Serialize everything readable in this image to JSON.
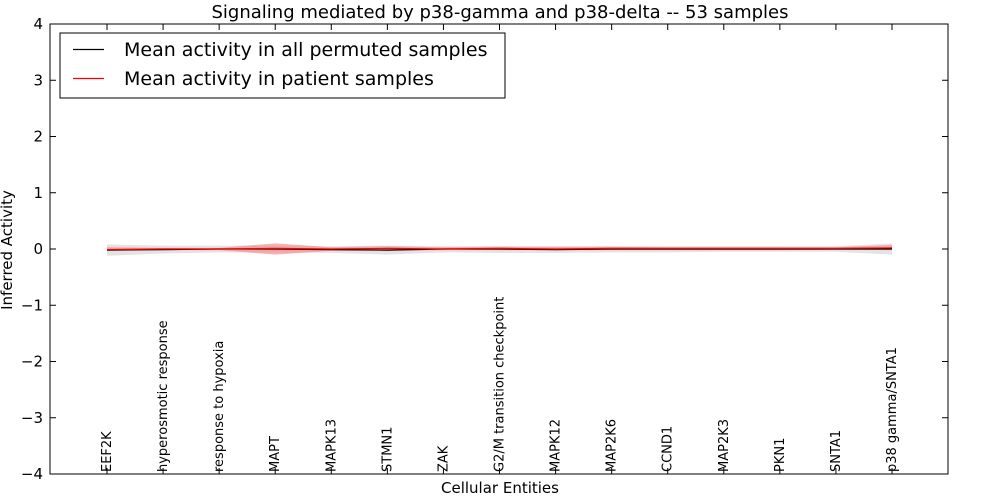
{
  "chart_data": {
    "type": "line",
    "title": "Signaling mediated by p38-gamma and p38-delta -- 53 samples",
    "xlabel": "Cellular Entities",
    "ylabel": "Inferred Activity",
    "ylim": [
      -4,
      4
    ],
    "yticks": [
      4,
      3,
      2,
      1,
      0,
      -1,
      -2,
      -3,
      -4
    ],
    "ytick_labels": [
      "4",
      "3",
      "2",
      "1",
      "0",
      "−1",
      "−2",
      "−3",
      "−4"
    ],
    "grid": false,
    "legend_position": "top-left",
    "categories": [
      "EEF2K",
      "hyperosmotic response",
      "response to hypoxia",
      "MAPT",
      "MAPK13",
      "STMN1",
      "ZAK",
      "G2/M transition checkpoint",
      "MAPK12",
      "MAP2K6",
      "CCND1",
      "MAP2K3",
      "PKN1",
      "SNTA1",
      "p38 gamma/SNTA1"
    ],
    "series": [
      {
        "name": "Mean activity in all permuted samples",
        "color": "#000000",
        "values": [
          -0.02,
          -0.01,
          0.0,
          0.0,
          -0.01,
          -0.02,
          0.0,
          0.0,
          -0.01,
          0.0,
          0.0,
          0.0,
          0.0,
          0.0,
          0.0
        ],
        "band_lower": [
          -0.12,
          -0.08,
          -0.06,
          -0.06,
          -0.07,
          -0.1,
          -0.06,
          -0.07,
          -0.07,
          -0.06,
          -0.06,
          -0.05,
          -0.05,
          -0.05,
          -0.1
        ],
        "band_upper": [
          0.08,
          0.06,
          0.06,
          0.06,
          0.05,
          0.06,
          0.05,
          0.05,
          0.05,
          0.05,
          0.05,
          0.05,
          0.05,
          0.05,
          0.1
        ],
        "band_color": "#cccccc"
      },
      {
        "name": "Mean activity in patient samples",
        "color": "#ff0000",
        "values": [
          -0.01,
          0.0,
          0.0,
          0.01,
          0.0,
          0.01,
          0.0,
          0.01,
          0.0,
          0.01,
          0.01,
          0.01,
          0.01,
          0.01,
          0.02
        ],
        "band_lower": [
          -0.03,
          -0.02,
          -0.02,
          -0.1,
          -0.03,
          -0.03,
          -0.02,
          -0.02,
          -0.02,
          -0.02,
          -0.02,
          -0.02,
          -0.02,
          -0.01,
          -0.02
        ],
        "band_upper": [
          0.03,
          0.02,
          0.02,
          0.1,
          0.03,
          0.05,
          0.03,
          0.04,
          0.04,
          0.04,
          0.03,
          0.03,
          0.03,
          0.03,
          0.07
        ],
        "band_color": "#f08080"
      }
    ]
  }
}
